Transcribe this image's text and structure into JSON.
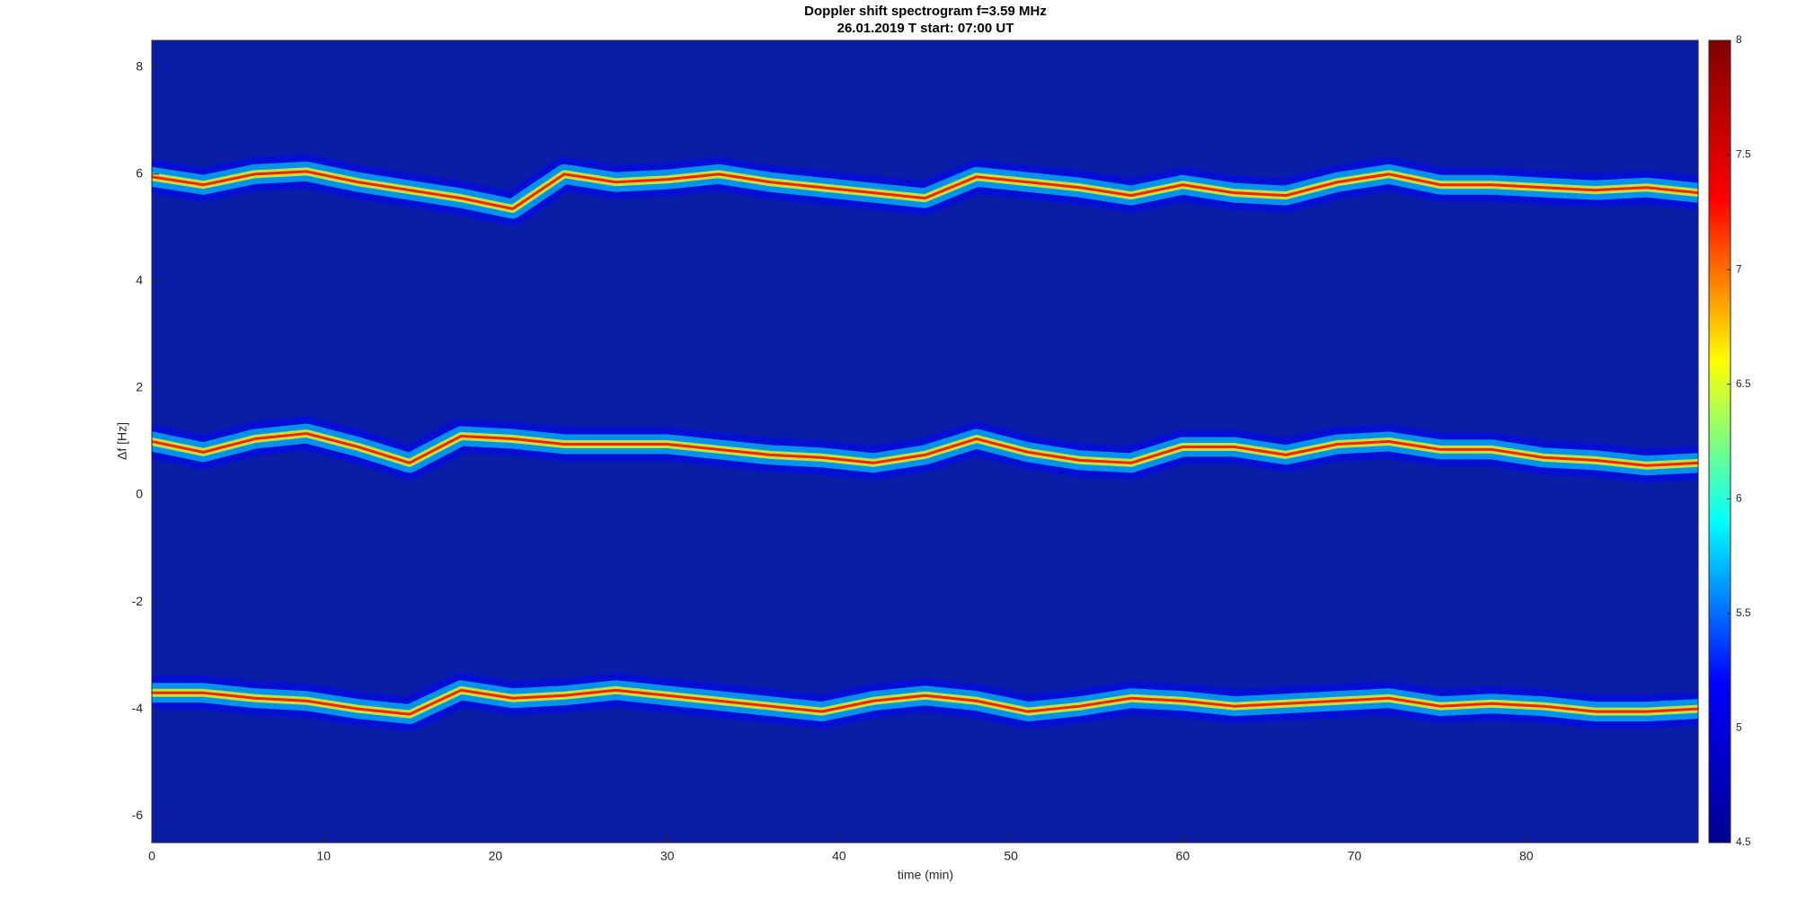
{
  "chart_data": {
    "type": "spectrogram",
    "title": "Doppler shift spectrogram f=3.59 MHz",
    "subtitle": "26.01.2019   T start: 07:00 UT",
    "x_label": "time (min)",
    "y_label": "Δf [Hz]",
    "x": [
      0,
      3,
      6,
      9,
      12,
      15,
      18,
      21,
      24,
      27,
      30,
      33,
      36,
      39,
      42,
      45,
      48,
      51,
      54,
      57,
      60,
      63,
      66,
      69,
      72,
      75,
      78,
      81,
      84,
      87,
      90
    ],
    "series": [
      {
        "color": "#ff2000",
        "values": [
          5.95,
          5.8,
          6.0,
          6.05,
          5.85,
          5.7,
          5.55,
          5.35,
          6.0,
          5.85,
          5.9,
          6.0,
          5.85,
          5.75,
          5.65,
          5.55,
          5.95,
          5.85,
          5.75,
          5.6,
          5.8,
          5.65,
          5.6,
          5.85,
          6.0,
          5.8,
          5.8,
          5.75,
          5.7,
          5.75,
          5.65
        ]
      },
      {
        "color": "#ff2000",
        "values": [
          1.0,
          0.8,
          1.05,
          1.15,
          0.9,
          0.6,
          1.1,
          1.05,
          0.95,
          0.95,
          0.95,
          0.85,
          0.75,
          0.7,
          0.6,
          0.75,
          1.05,
          0.8,
          0.65,
          0.6,
          0.9,
          0.9,
          0.75,
          0.95,
          1.0,
          0.85,
          0.85,
          0.7,
          0.65,
          0.55,
          0.6
        ]
      },
      {
        "color": "#ff2000",
        "values": [
          -3.7,
          -3.7,
          -3.8,
          -3.85,
          -4.0,
          -4.1,
          -3.65,
          -3.8,
          -3.75,
          -3.65,
          -3.75,
          -3.85,
          -3.95,
          -4.05,
          -3.85,
          -3.75,
          -3.85,
          -4.05,
          -3.95,
          -3.8,
          -3.85,
          -3.95,
          -3.9,
          -3.85,
          -3.8,
          -3.95,
          -3.9,
          -3.95,
          -4.05,
          -4.05,
          -4.0
        ]
      }
    ],
    "xlim": [
      0,
      90
    ],
    "xticks": [
      0,
      10,
      20,
      30,
      40,
      50,
      60,
      70,
      80
    ],
    "ylim": [
      -6.5,
      8.5
    ],
    "yticks": [
      -6,
      -4,
      -2,
      0,
      2,
      4,
      6,
      8
    ],
    "background": "#0b1ca6",
    "colormap": [
      "#00008f",
      "#0000ff",
      "#00ffff",
      "#ffff00",
      "#ff0000",
      "#800000"
    ],
    "clim": [
      4.5,
      8
    ],
    "cticks": [
      4.5,
      5,
      5.5,
      6,
      6.5,
      7,
      7.5,
      8
    ]
  }
}
